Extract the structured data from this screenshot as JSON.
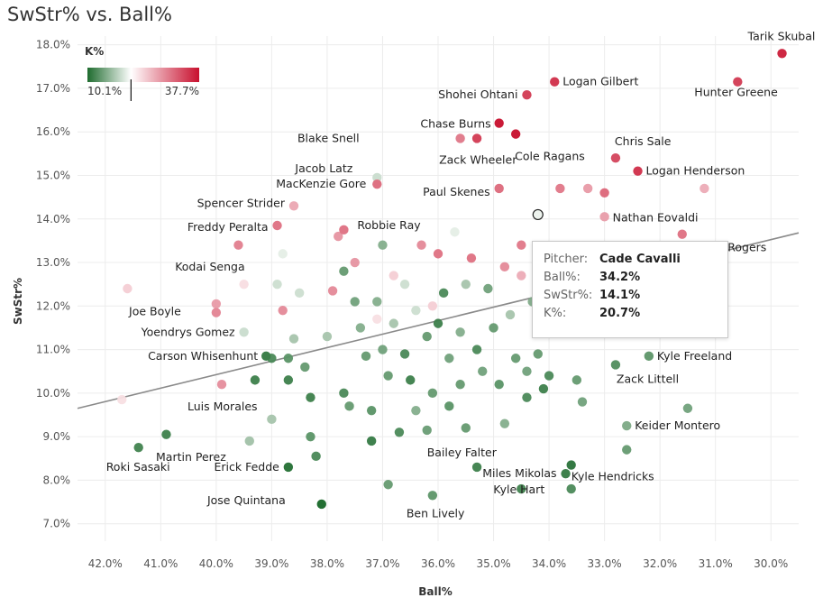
{
  "title": "SwStr% vs. Ball%",
  "chart_data": {
    "type": "scatter",
    "title": "SwStr% vs. Ball%",
    "xlabel": "Ball%",
    "ylabel": "SwStr%",
    "xlim": [
      42.5,
      29.5
    ],
    "x_reversed": true,
    "ylim": [
      6.6,
      18.2
    ],
    "x_ticks": [
      "42.0%",
      "41.0%",
      "40.0%",
      "39.0%",
      "38.0%",
      "37.0%",
      "36.0%",
      "35.0%",
      "34.0%",
      "33.0%",
      "32.0%",
      "31.0%",
      "30.0%"
    ],
    "x_tick_values": [
      42,
      41,
      40,
      39,
      38,
      37,
      36,
      35,
      34,
      33,
      32,
      31,
      30
    ],
    "y_ticks": [
      "7.0%",
      "8.0%",
      "9.0%",
      "10.0%",
      "11.0%",
      "12.0%",
      "13.0%",
      "14.0%",
      "15.0%",
      "16.0%",
      "17.0%",
      "18.0%"
    ],
    "y_tick_values": [
      7,
      8,
      9,
      10,
      11,
      12,
      13,
      14,
      15,
      16,
      17,
      18
    ],
    "color_legend": {
      "title": "K%",
      "min_label": "10.1%",
      "max_label": "37.7%",
      "low_color": "#1e6b2e",
      "mid_color": "#ffffff",
      "high_color": "#c8102e",
      "marker_value": 0.39
    },
    "trend_line": {
      "x": [
        42.5,
        29.5
      ],
      "y": [
        9.65,
        13.68
      ]
    },
    "labeled_points": [
      {
        "name": "Tarik Skubal",
        "x": 29.8,
        "y": 17.8,
        "k": 0.93
      },
      {
        "name": "Hunter Greene",
        "x": 30.6,
        "y": 17.15,
        "k": 0.85
      },
      {
        "name": "Logan Gilbert",
        "x": 33.9,
        "y": 17.15,
        "k": 0.88
      },
      {
        "name": "Shohei Ohtani",
        "x": 34.4,
        "y": 16.85,
        "k": 0.85
      },
      {
        "name": "Chase Burns",
        "x": 34.9,
        "y": 16.2,
        "k": 0.97
      },
      {
        "name": "Blake Snell",
        "x": 35.6,
        "y": 15.85,
        "k": 0.68
      },
      {
        "name": "Zack Wheeler",
        "x": 35.3,
        "y": 15.85,
        "k": 0.85
      },
      {
        "name": "Cole Ragans",
        "x": 34.6,
        "y": 15.95,
        "k": 0.97
      },
      {
        "name": "Chris Sale",
        "x": 32.8,
        "y": 15.4,
        "k": 0.82
      },
      {
        "name": "Logan Henderson",
        "x": 32.4,
        "y": 15.1,
        "k": 0.88
      },
      {
        "name": "Jacob Latz",
        "x": 37.1,
        "y": 14.95,
        "k": 0.35
      },
      {
        "name": "MacKenzie Gore",
        "x": 37.1,
        "y": 14.8,
        "k": 0.72
      },
      {
        "name": "Paul Skenes",
        "x": 34.9,
        "y": 14.7,
        "k": 0.72
      },
      {
        "name": "Spencer Strider",
        "x": 38.6,
        "y": 14.3,
        "k": 0.55
      },
      {
        "name": "Nathan Eovaldi",
        "x": 33.0,
        "y": 14.05,
        "k": 0.58
      },
      {
        "name": "Freddy Peralta",
        "x": 38.9,
        "y": 13.85,
        "k": 0.7
      },
      {
        "name": "Robbie Ray",
        "x": 37.7,
        "y": 13.75,
        "k": 0.7
      },
      {
        "name": "Trevor Rogers",
        "x": 31.6,
        "y": 13.65,
        "k": 0.7
      },
      {
        "name": "Cade Cavalli",
        "x": 34.2,
        "y": 14.1,
        "k": 0.39
      },
      {
        "name": "Kodai Senga",
        "x": 39.5,
        "y": 12.5,
        "k": 0.4
      },
      {
        "name": "Joe Boyle",
        "x": 40.0,
        "y": 11.85,
        "k": 0.65
      },
      {
        "name": "Yoendrys Gomez",
        "x": 39.5,
        "y": 11.4,
        "k": 0.35
      },
      {
        "name": "Carson Whisenhunt",
        "x": 39.1,
        "y": 10.85,
        "k": 0.12
      },
      {
        "name": "Kyle Freeland",
        "x": 32.2,
        "y": 10.85,
        "k": 0.2
      },
      {
        "name": "Zack Littell",
        "x": 32.8,
        "y": 10.65,
        "k": 0.18
      },
      {
        "name": "Luis Morales",
        "x": 39.9,
        "y": 10.2,
        "k": 0.62
      },
      {
        "name": "Keider Montero",
        "x": 32.6,
        "y": 9.25,
        "k": 0.25
      },
      {
        "name": "Roki Sasaki",
        "x": 41.4,
        "y": 8.75,
        "k": 0.15
      },
      {
        "name": "Martin Perez",
        "x": 39.4,
        "y": 8.9,
        "k": 0.3
      },
      {
        "name": "Bailey Falter",
        "x": 36.2,
        "y": 9.15,
        "k": 0.22
      },
      {
        "name": "Erick Fedde",
        "x": 38.7,
        "y": 8.3,
        "k": 0.08
      },
      {
        "name": "Miles Mikolas",
        "x": 33.7,
        "y": 8.15,
        "k": 0.12
      },
      {
        "name": "Kyle Hendricks",
        "x": 33.6,
        "y": 8.35,
        "k": 0.1
      },
      {
        "name": "Jose Quintana",
        "x": 38.1,
        "y": 7.45,
        "k": 0.04
      },
      {
        "name": "Ben Lively",
        "x": 36.1,
        "y": 7.65,
        "k": 0.2
      },
      {
        "name": "Kyle Hart",
        "x": 34.5,
        "y": 7.8,
        "k": 0.15
      }
    ],
    "other_points": [
      [
        41.7,
        9.85,
        0.4
      ],
      [
        41.6,
        12.4,
        0.45
      ],
      [
        40.9,
        9.05,
        0.12
      ],
      [
        40.0,
        12.05,
        0.6
      ],
      [
        39.6,
        13.4,
        0.68
      ],
      [
        39.3,
        10.3,
        0.12
      ],
      [
        39.0,
        10.8,
        0.15
      ],
      [
        39.0,
        9.4,
        0.3
      ],
      [
        38.9,
        12.5,
        0.35
      ],
      [
        38.8,
        13.2,
        0.38
      ],
      [
        38.8,
        11.9,
        0.65
      ],
      [
        38.7,
        10.8,
        0.18
      ],
      [
        38.7,
        10.3,
        0.12
      ],
      [
        38.6,
        11.25,
        0.3
      ],
      [
        38.5,
        12.3,
        0.35
      ],
      [
        38.4,
        10.6,
        0.2
      ],
      [
        38.3,
        9.9,
        0.12
      ],
      [
        38.3,
        9.0,
        0.18
      ],
      [
        38.2,
        8.55,
        0.15
      ],
      [
        38.0,
        11.3,
        0.3
      ],
      [
        37.9,
        12.35,
        0.65
      ],
      [
        37.8,
        13.6,
        0.62
      ],
      [
        37.7,
        12.8,
        0.2
      ],
      [
        37.7,
        10.0,
        0.15
      ],
      [
        37.6,
        9.7,
        0.2
      ],
      [
        37.5,
        12.1,
        0.22
      ],
      [
        37.5,
        13.0,
        0.62
      ],
      [
        37.4,
        11.5,
        0.25
      ],
      [
        37.3,
        10.85,
        0.2
      ],
      [
        37.2,
        9.6,
        0.18
      ],
      [
        37.2,
        8.9,
        0.1
      ],
      [
        37.1,
        12.1,
        0.25
      ],
      [
        37.0,
        13.4,
        0.25
      ],
      [
        37.0,
        11.0,
        0.22
      ],
      [
        36.9,
        10.4,
        0.2
      ],
      [
        36.9,
        7.9,
        0.2
      ],
      [
        36.8,
        11.6,
        0.3
      ],
      [
        36.7,
        9.1,
        0.15
      ],
      [
        36.6,
        12.5,
        0.35
      ],
      [
        36.6,
        10.9,
        0.15
      ],
      [
        36.5,
        10.3,
        0.12
      ],
      [
        36.4,
        11.9,
        0.35
      ],
      [
        36.4,
        9.6,
        0.25
      ],
      [
        36.3,
        13.4,
        0.65
      ],
      [
        36.2,
        11.3,
        0.2
      ],
      [
        36.1,
        12.0,
        0.45
      ],
      [
        36.1,
        10.0,
        0.2
      ],
      [
        36.0,
        13.2,
        0.72
      ],
      [
        36.0,
        11.6,
        0.12
      ],
      [
        35.9,
        12.3,
        0.15
      ],
      [
        35.8,
        10.8,
        0.22
      ],
      [
        35.8,
        9.7,
        0.18
      ],
      [
        35.7,
        13.7,
        0.38
      ],
      [
        35.6,
        11.4,
        0.25
      ],
      [
        35.6,
        10.2,
        0.2
      ],
      [
        35.5,
        12.5,
        0.3
      ],
      [
        35.5,
        9.2,
        0.2
      ],
      [
        35.4,
        13.1,
        0.72
      ],
      [
        35.3,
        11.0,
        0.15
      ],
      [
        35.3,
        8.3,
        0.12
      ],
      [
        35.2,
        10.5,
        0.22
      ],
      [
        35.1,
        12.4,
        0.22
      ],
      [
        35.0,
        11.5,
        0.2
      ],
      [
        34.9,
        10.2,
        0.18
      ],
      [
        34.8,
        12.9,
        0.65
      ],
      [
        34.8,
        9.3,
        0.25
      ],
      [
        34.7,
        11.8,
        0.3
      ],
      [
        34.6,
        10.8,
        0.2
      ],
      [
        34.5,
        13.4,
        0.7
      ],
      [
        34.5,
        12.7,
        0.55
      ],
      [
        34.4,
        10.5,
        0.22
      ],
      [
        34.4,
        9.9,
        0.15
      ],
      [
        34.3,
        12.1,
        0.25
      ],
      [
        34.2,
        13.0,
        0.7
      ],
      [
        34.2,
        10.9,
        0.2
      ],
      [
        34.1,
        10.1,
        0.12
      ],
      [
        34.0,
        10.4,
        0.15
      ],
      [
        33.8,
        14.7,
        0.7
      ],
      [
        33.5,
        10.3,
        0.2
      ],
      [
        33.4,
        9.8,
        0.22
      ],
      [
        33.3,
        14.7,
        0.6
      ],
      [
        33.0,
        14.6,
        0.75
      ],
      [
        31.2,
        14.7,
        0.55
      ],
      [
        31.5,
        9.65,
        0.22
      ],
      [
        32.6,
        8.7,
        0.2
      ],
      [
        33.6,
        7.8,
        0.15
      ],
      [
        37.1,
        11.7,
        0.4
      ],
      [
        36.8,
        12.7,
        0.45
      ]
    ]
  },
  "tooltip": {
    "rows": [
      {
        "key": "Pitcher:",
        "value": "Cade Cavalli"
      },
      {
        "key": "Ball%:",
        "value": "34.2%"
      },
      {
        "key": "SwStr%:",
        "value": "14.1%"
      },
      {
        "key": "K%:",
        "value": "20.7%"
      }
    ]
  }
}
